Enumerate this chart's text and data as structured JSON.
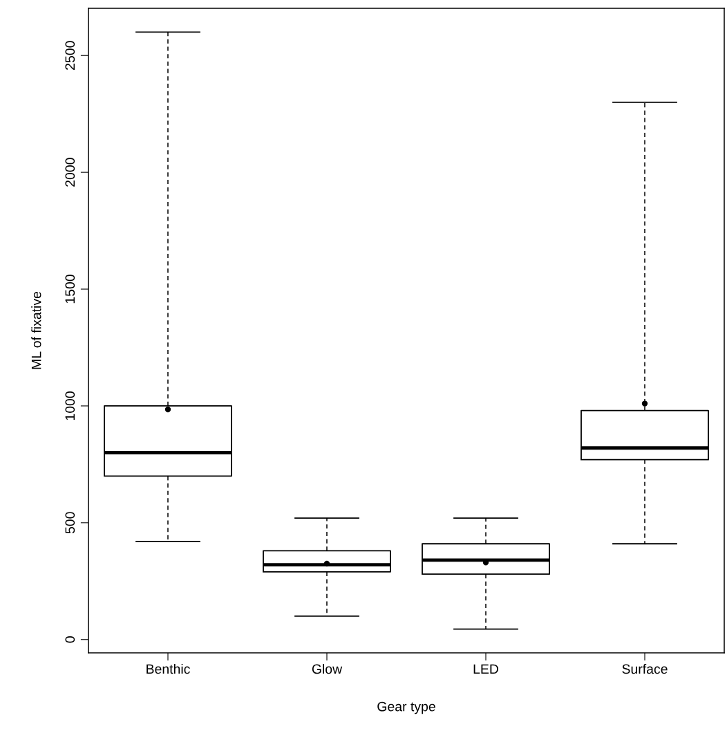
{
  "chart_data": {
    "type": "box",
    "xlabel": "Gear type",
    "ylabel": "ML of fixative",
    "categories": [
      "Benthic",
      "Glow",
      "LED",
      "Surface"
    ],
    "boxes": [
      {
        "low": 420,
        "q1": 700,
        "median": 800,
        "q3": 1000,
        "high": 2600,
        "mean": 985
      },
      {
        "low": 100,
        "q1": 290,
        "median": 320,
        "q3": 380,
        "high": 520,
        "mean": 325
      },
      {
        "low": 45,
        "q1": 280,
        "median": 340,
        "q3": 410,
        "high": 520,
        "mean": 330
      },
      {
        "low": 410,
        "q1": 770,
        "median": 820,
        "q3": 980,
        "high": 2300,
        "mean": 1010
      }
    ],
    "ylim": [
      -57,
      2702
    ],
    "yticks": [
      0,
      500,
      1000,
      1500,
      2000,
      2500
    ],
    "grid": false,
    "legend": false
  }
}
